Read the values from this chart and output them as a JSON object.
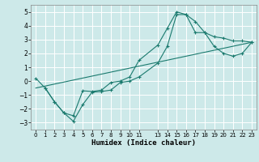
{
  "xlabel": "Humidex (Indice chaleur)",
  "bg_color": "#cde9e9",
  "grid_color": "#ffffff",
  "line_color": "#1a7a6e",
  "xlim": [
    -0.5,
    23.5
  ],
  "ylim": [
    -3.5,
    5.5
  ],
  "yticks": [
    -3,
    -2,
    -1,
    0,
    1,
    2,
    3,
    4,
    5
  ],
  "xtick_positions": [
    0,
    1,
    2,
    3,
    4,
    5,
    6,
    7,
    8,
    9,
    10,
    11,
    13,
    14,
    15,
    16,
    17,
    18,
    19,
    20,
    21,
    22,
    23
  ],
  "xtick_labels": [
    "0",
    "1",
    "2",
    "3",
    "4",
    "5",
    "6",
    "7",
    "8",
    "9",
    "10",
    "11",
    "13",
    "14",
    "15",
    "16",
    "17",
    "18",
    "19",
    "20",
    "21",
    "22",
    "23"
  ],
  "series1_x": [
    0,
    1,
    2,
    3,
    4,
    5,
    6,
    7,
    8,
    9,
    10,
    11,
    13,
    14,
    15,
    16,
    17,
    18,
    19,
    20,
    21,
    22,
    23
  ],
  "series1_y": [
    0.2,
    -0.5,
    -1.5,
    -2.3,
    -2.5,
    -0.7,
    -0.75,
    -0.65,
    -0.1,
    0.0,
    0.3,
    1.5,
    2.6,
    3.8,
    5.0,
    4.8,
    4.3,
    3.5,
    3.2,
    3.1,
    2.9,
    2.9,
    2.8
  ],
  "series2_x": [
    1,
    2,
    3,
    4,
    5,
    6,
    7,
    8,
    9,
    10,
    11,
    13,
    14,
    15,
    16,
    17,
    18,
    19,
    20,
    21,
    22,
    23
  ],
  "series2_y": [
    -0.5,
    -1.5,
    -2.3,
    -2.9,
    -1.7,
    -0.8,
    -0.75,
    -0.65,
    -0.1,
    0.0,
    0.3,
    1.3,
    2.5,
    4.8,
    4.8,
    3.5,
    3.5,
    2.5,
    2.0,
    1.8,
    2.0,
    2.8
  ],
  "series3_x": [
    0,
    23
  ],
  "series3_y": [
    -0.5,
    2.8
  ]
}
